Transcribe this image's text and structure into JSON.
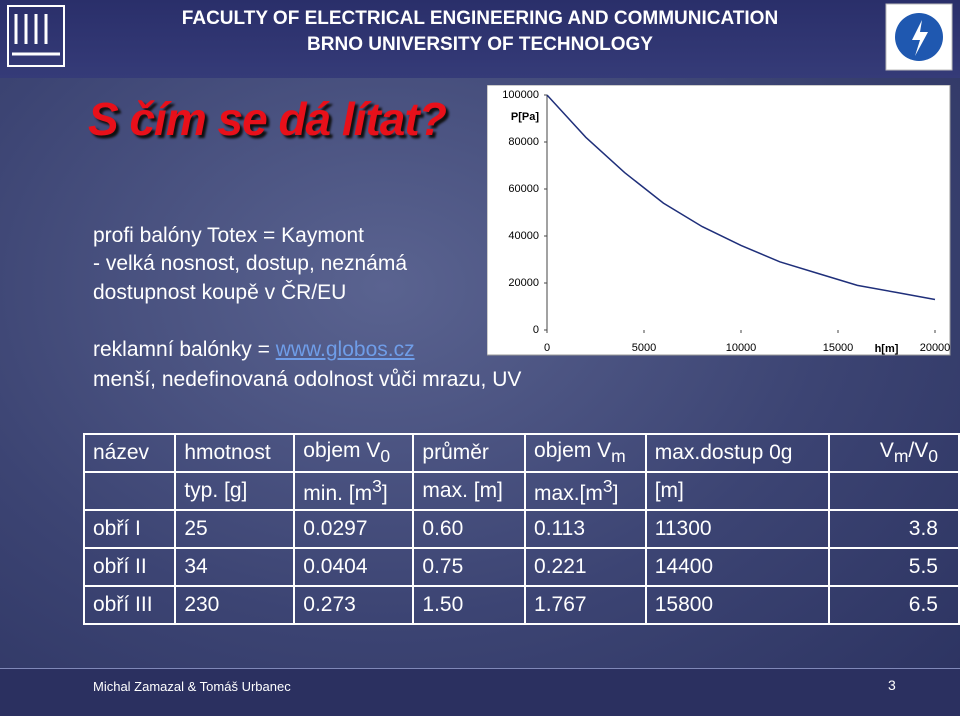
{
  "header": {
    "lines": [
      "FACULTY  OF ELECTRICAL ENGINEERING AND COMMUNICATION",
      "BRNO UNIVERSITY OF TECHNOLOGY"
    ]
  },
  "title": "S čím se dá lítat?",
  "body": {
    "lines_top": [
      "profi balóny Totex = Kaymont",
      "- velká nosnost, dostup, neznámá",
      "dostupnost koupě v ČR/EU"
    ],
    "link_prefix": "reklamní balónky = ",
    "link": "www.globos.cz",
    "lines_bottom": [
      "menší, nedefinovaná odolnost vůči mrazu, UV"
    ]
  },
  "chart_data": {
    "type": "line",
    "x_label": "h[m]",
    "y_label": "P[Pa]",
    "x": [
      0,
      2000,
      4000,
      6000,
      8000,
      10000,
      12000,
      14000,
      16000,
      18000,
      20000
    ],
    "series": [
      {
        "color": "#1f2f7a",
        "values": [
          100000,
          82000,
          67000,
          54000,
          44000,
          36000,
          29000,
          24000,
          19000,
          16000,
          13000
        ]
      }
    ],
    "xlim": [
      0,
      20000
    ],
    "ylim": [
      0,
      100000
    ],
    "xticks": [
      0,
      5000,
      10000,
      15000,
      20000
    ],
    "yticks": [
      0,
      20000,
      40000,
      60000,
      80000,
      100000
    ]
  },
  "table": {
    "header": [
      [
        "název"
      ],
      [
        "hmotnost"
      ],
      [
        "objem V",
        {
          "sub": "0"
        }
      ],
      [
        "průměr"
      ],
      [
        "objem V",
        {
          "sub": "m"
        }
      ],
      [
        "max.dostup 0g"
      ],
      [
        "V",
        {
          "sub": "m"
        },
        "/V",
        {
          "sub": "0"
        }
      ]
    ],
    "units": [
      null,
      [
        "typ. [g]"
      ],
      [
        "min. [m",
        {
          "sup": "3"
        },
        "]"
      ],
      [
        "max. [m]"
      ],
      [
        "max.[m",
        {
          "sup": "3"
        },
        "]"
      ],
      [
        "[m]"
      ],
      null
    ],
    "rows": [
      [
        "obří I",
        "25",
        "0.0297",
        "0.60",
        "0.113",
        "11300",
        "3.8"
      ],
      [
        "obří II",
        "34",
        "0.0404",
        "0.75",
        "0.221",
        "14400",
        "5.5"
      ],
      [
        "obří III",
        "230",
        "0.273",
        "1.50",
        "1.767",
        "15800",
        "6.5"
      ]
    ]
  },
  "footer": {
    "authors": "Michal Zamazal & Tomáš Urbanec",
    "page": "3"
  }
}
